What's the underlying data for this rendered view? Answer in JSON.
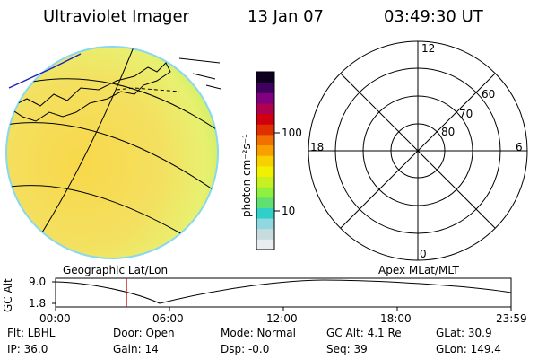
{
  "header": {
    "instrument": "Ultraviolet Imager",
    "date": "13 Jan 07",
    "time": "03:49:30 UT"
  },
  "colorbar": {
    "unit_label": "photon cm⁻²s⁻¹",
    "tick_100": "100",
    "tick_10": "10",
    "colors": [
      "#e8eef0",
      "#c8dce0",
      "#90d8e0",
      "#30d0c8",
      "#60e070",
      "#90f040",
      "#c8f020",
      "#f0f000",
      "#f8d000",
      "#f8a000",
      "#f07000",
      "#e03000",
      "#d00010",
      "#b00050",
      "#800080",
      "#400060",
      "#100020"
    ]
  },
  "left_plot": {
    "label": "Geographic Lat/Lon"
  },
  "right_plot": {
    "label": "Apex MLat/MLT",
    "mlt_12": "12",
    "mlt_18": "18",
    "mlt_6": "6",
    "mlt_0": "0",
    "lat_60": "60",
    "lat_70": "70",
    "lat_80": "80"
  },
  "timeline": {
    "ylabel": "GC Alt",
    "y_top": "9.0",
    "y_bottom": "1.8",
    "ticks": [
      "00:00",
      "06:00",
      "12:00",
      "18:00",
      "23:59"
    ]
  },
  "info": {
    "flt": "Flt: LBHL",
    "ip": "IP: 36.0",
    "door": "Door: Open",
    "gain": "Gain: 14",
    "mode": "Mode: Normal",
    "dsp": "Dsp:   -0.0",
    "gcalt": "GC Alt: 4.1 Re",
    "seq": "Seq: 39",
    "glat": "GLat:  30.9",
    "glon": "GLon: 149.4"
  }
}
